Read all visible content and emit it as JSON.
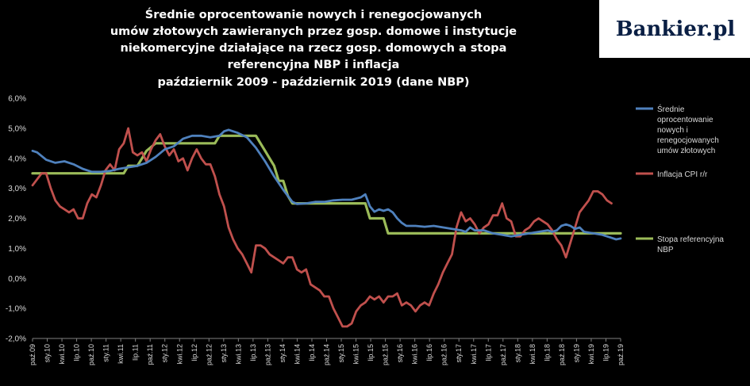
{
  "logo": {
    "text": "Bankier.pl"
  },
  "chart_data": {
    "type": "line",
    "title_lines": [
      "Średnie oprocentowanie nowych i renegocjowanych",
      "umów złotowych zawieranych przez gosp. domowe i instytucje",
      "niekomercyjne działające na rzecz gosp. domowych a stopa",
      "referencyjna NBP i inflacja",
      "październik 2009 - październik 2019 (dane NBP)"
    ],
    "x_start": "paź.09",
    "x_end": "paź.19",
    "n_points": 121,
    "x_tick_labels": [
      "paź.09",
      "sty.10",
      "kwi.10",
      "lip.10",
      "paź.10",
      "sty.11",
      "kwi.11",
      "lip.11",
      "paź.11",
      "sty.12",
      "kwi.12",
      "lip.12",
      "paź.12",
      "sty.13",
      "kwi.13",
      "lip.13",
      "paź.13",
      "sty.14",
      "kwi.14",
      "lip.14",
      "paź.14",
      "sty.15",
      "kwi.15",
      "lip.15",
      "paź.15",
      "sty.16",
      "kwi.16",
      "lip.16",
      "paź.16",
      "sty.17",
      "kwi.17",
      "lip.17",
      "paź.17",
      "sty.18",
      "kwi.18",
      "lip.18",
      "paź.18",
      "sty.19",
      "kwi.19",
      "lip.19",
      "paź.19"
    ],
    "y_ticks": [
      "-2,0%",
      "-1,0%",
      "0,0%",
      "1,0%",
      "2,0%",
      "3,0%",
      "4,0%",
      "5,0%",
      "6,0%"
    ],
    "ylim": [
      -2,
      6
    ],
    "grid": false,
    "legend_position": "right",
    "series": [
      {
        "name": "Średnie oprocentowanie nowych i renegocjowanych umów złotowych",
        "color": "#4f81bd",
        "anchors": [
          [
            0,
            4.25
          ],
          [
            1,
            4.2
          ],
          [
            3,
            3.95
          ],
          [
            5,
            3.85
          ],
          [
            7,
            3.9
          ],
          [
            9,
            3.8
          ],
          [
            11,
            3.65
          ],
          [
            13,
            3.55
          ],
          [
            15,
            3.55
          ],
          [
            17,
            3.58
          ],
          [
            19,
            3.65
          ],
          [
            21,
            3.7
          ],
          [
            23,
            3.75
          ],
          [
            25,
            3.85
          ],
          [
            27,
            4.05
          ],
          [
            29,
            4.3
          ],
          [
            31,
            4.4
          ],
          [
            33,
            4.65
          ],
          [
            35,
            4.75
          ],
          [
            37,
            4.75
          ],
          [
            39,
            4.7
          ],
          [
            41,
            4.75
          ],
          [
            42,
            4.9
          ],
          [
            43,
            4.95
          ],
          [
            44,
            4.9
          ],
          [
            45,
            4.85
          ],
          [
            47,
            4.7
          ],
          [
            49,
            4.35
          ],
          [
            51,
            3.9
          ],
          [
            53,
            3.4
          ],
          [
            55,
            2.95
          ],
          [
            57,
            2.55
          ],
          [
            58,
            2.48
          ],
          [
            60,
            2.5
          ],
          [
            62,
            2.55
          ],
          [
            64,
            2.55
          ],
          [
            66,
            2.6
          ],
          [
            68,
            2.62
          ],
          [
            70,
            2.62
          ],
          [
            72,
            2.7
          ],
          [
            73,
            2.8
          ],
          [
            74,
            2.4
          ],
          [
            75,
            2.22
          ],
          [
            76,
            2.3
          ],
          [
            77,
            2.25
          ],
          [
            78,
            2.3
          ],
          [
            79,
            2.2
          ],
          [
            80,
            2.0
          ],
          [
            81,
            1.85
          ],
          [
            82,
            1.75
          ],
          [
            84,
            1.75
          ],
          [
            86,
            1.72
          ],
          [
            88,
            1.75
          ],
          [
            90,
            1.7
          ],
          [
            92,
            1.65
          ],
          [
            94,
            1.6
          ],
          [
            95,
            1.55
          ],
          [
            96,
            1.7
          ],
          [
            97,
            1.6
          ],
          [
            99,
            1.6
          ],
          [
            101,
            1.5
          ],
          [
            103,
            1.45
          ],
          [
            105,
            1.4
          ],
          [
            107,
            1.45
          ],
          [
            109,
            1.5
          ],
          [
            111,
            1.55
          ],
          [
            113,
            1.6
          ],
          [
            114,
            1.55
          ],
          [
            115,
            1.6
          ],
          [
            116,
            1.75
          ],
          [
            117,
            1.8
          ],
          [
            118,
            1.75
          ],
          [
            119,
            1.65
          ],
          [
            120,
            1.7
          ],
          [
            121,
            1.55
          ],
          [
            123,
            1.5
          ],
          [
            125,
            1.45
          ],
          [
            127,
            1.35
          ],
          [
            128,
            1.3
          ],
          [
            129,
            1.33
          ]
        ]
      },
      {
        "name": "Inflacja CPI r/r",
        "color": "#c0504d",
        "anchors": [
          [
            0,
            3.1
          ],
          [
            1,
            3.3
          ],
          [
            2,
            3.5
          ],
          [
            3,
            3.5
          ],
          [
            4,
            3.0
          ],
          [
            5,
            2.6
          ],
          [
            6,
            2.4
          ],
          [
            7,
            2.3
          ],
          [
            8,
            2.2
          ],
          [
            9,
            2.3
          ],
          [
            10,
            2.0
          ],
          [
            11,
            2.0
          ],
          [
            12,
            2.5
          ],
          [
            13,
            2.8
          ],
          [
            14,
            2.7
          ],
          [
            15,
            3.1
          ],
          [
            16,
            3.6
          ],
          [
            17,
            3.8
          ],
          [
            18,
            3.6
          ],
          [
            19,
            4.3
          ],
          [
            20,
            4.5
          ],
          [
            21,
            5.0
          ],
          [
            22,
            4.2
          ],
          [
            23,
            4.1
          ],
          [
            24,
            4.2
          ],
          [
            25,
            3.9
          ],
          [
            26,
            4.3
          ],
          [
            27,
            4.6
          ],
          [
            28,
            4.8
          ],
          [
            29,
            4.4
          ],
          [
            30,
            4.1
          ],
          [
            31,
            4.3
          ],
          [
            32,
            3.9
          ],
          [
            33,
            4.0
          ],
          [
            34,
            3.6
          ],
          [
            35,
            4.0
          ],
          [
            36,
            4.3
          ],
          [
            37,
            4.0
          ],
          [
            38,
            3.8
          ],
          [
            39,
            3.8
          ],
          [
            40,
            3.4
          ],
          [
            41,
            2.8
          ],
          [
            42,
            2.4
          ],
          [
            43,
            1.7
          ],
          [
            44,
            1.3
          ],
          [
            45,
            1.0
          ],
          [
            46,
            0.8
          ],
          [
            47,
            0.5
          ],
          [
            48,
            0.2
          ],
          [
            49,
            1.1
          ],
          [
            50,
            1.1
          ],
          [
            51,
            1.0
          ],
          [
            52,
            0.8
          ],
          [
            53,
            0.7
          ],
          [
            54,
            0.6
          ],
          [
            55,
            0.5
          ],
          [
            56,
            0.7
          ],
          [
            57,
            0.7
          ],
          [
            58,
            0.3
          ],
          [
            59,
            0.2
          ],
          [
            60,
            0.3
          ],
          [
            61,
            -0.2
          ],
          [
            62,
            -0.3
          ],
          [
            63,
            -0.4
          ],
          [
            64,
            -0.6
          ],
          [
            65,
            -0.6
          ],
          [
            66,
            -1.0
          ],
          [
            67,
            -1.3
          ],
          [
            68,
            -1.6
          ],
          [
            69,
            -1.6
          ],
          [
            70,
            -1.5
          ],
          [
            71,
            -1.1
          ],
          [
            72,
            -0.9
          ],
          [
            73,
            -0.8
          ],
          [
            74,
            -0.6
          ],
          [
            75,
            -0.7
          ],
          [
            76,
            -0.6
          ],
          [
            77,
            -0.8
          ],
          [
            78,
            -0.6
          ],
          [
            79,
            -0.6
          ],
          [
            80,
            -0.5
          ],
          [
            81,
            -0.9
          ],
          [
            82,
            -0.8
          ],
          [
            83,
            -0.9
          ],
          [
            84,
            -1.1
          ],
          [
            85,
            -0.9
          ],
          [
            86,
            -0.8
          ],
          [
            87,
            -0.9
          ],
          [
            88,
            -0.5
          ],
          [
            89,
            -0.2
          ],
          [
            90,
            0.2
          ],
          [
            91,
            0.5
          ],
          [
            92,
            0.8
          ],
          [
            93,
            1.7
          ],
          [
            94,
            2.2
          ],
          [
            95,
            1.9
          ],
          [
            96,
            2.0
          ],
          [
            97,
            1.8
          ],
          [
            98,
            1.5
          ],
          [
            99,
            1.7
          ],
          [
            100,
            1.8
          ],
          [
            101,
            2.1
          ],
          [
            102,
            2.1
          ],
          [
            103,
            2.5
          ],
          [
            104,
            2.0
          ],
          [
            105,
            1.9
          ],
          [
            106,
            1.4
          ],
          [
            107,
            1.4
          ],
          [
            108,
            1.6
          ],
          [
            109,
            1.7
          ],
          [
            110,
            1.9
          ],
          [
            111,
            2.0
          ],
          [
            112,
            1.9
          ],
          [
            113,
            1.8
          ],
          [
            114,
            1.6
          ],
          [
            115,
            1.3
          ],
          [
            116,
            1.1
          ],
          [
            117,
            0.7
          ],
          [
            118,
            1.2
          ],
          [
            119,
            1.7
          ],
          [
            120,
            2.2
          ],
          [
            121,
            2.4
          ],
          [
            122,
            2.6
          ],
          [
            123,
            2.9
          ],
          [
            124,
            2.9
          ],
          [
            125,
            2.8
          ],
          [
            126,
            2.6
          ],
          [
            127,
            2.5
          ]
        ]
      },
      {
        "name": "Stopa referencyjna NBP",
        "color": "#9bbb59",
        "anchors": [
          [
            0,
            3.5
          ],
          [
            20,
            3.5
          ],
          [
            21,
            3.75
          ],
          [
            23,
            3.75
          ],
          [
            24,
            4.0
          ],
          [
            25,
            4.25
          ],
          [
            27,
            4.5
          ],
          [
            40,
            4.5
          ],
          [
            41,
            4.75
          ],
          [
            49,
            4.75
          ],
          [
            50,
            4.5
          ],
          [
            51,
            4.25
          ],
          [
            52,
            4.0
          ],
          [
            53,
            3.75
          ],
          [
            54,
            3.25
          ],
          [
            55,
            3.25
          ],
          [
            56,
            2.75
          ],
          [
            57,
            2.5
          ],
          [
            73,
            2.5
          ],
          [
            74,
            2.0
          ],
          [
            77,
            2.0
          ],
          [
            78,
            1.5
          ],
          [
            129,
            1.5
          ]
        ]
      }
    ]
  }
}
